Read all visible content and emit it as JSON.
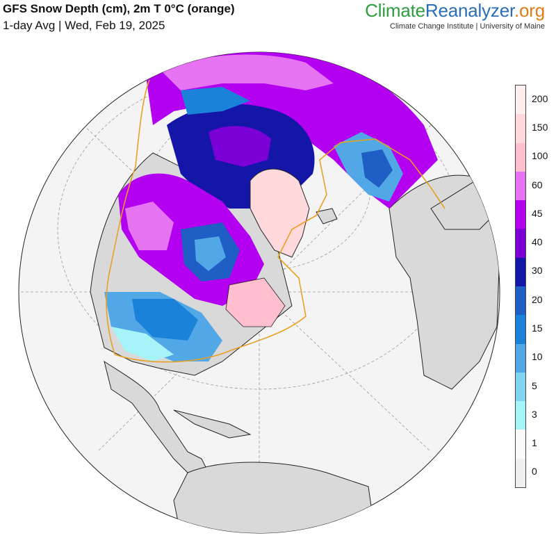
{
  "header": {
    "title": "GFS Snow Depth (cm), 2m T 0°C (orange)",
    "subtitle": "1-day Avg | Wed, Feb 19, 2025"
  },
  "brand": {
    "part1": "Climate",
    "part2": "Reanalyzer",
    "part3": ".org",
    "subtitle": "Climate Change Institute | University of Maine",
    "colors": {
      "climate": "#2e9d3f",
      "reanalyzer": "#2a6eb5",
      "org": "#e07b1a"
    }
  },
  "map": {
    "projection": "orthographic (northern hemisphere view)",
    "colors": {
      "ocean": "#f2f2f2",
      "land": "#d9d9d9",
      "freezing_line": "#e8a020"
    }
  },
  "legend": {
    "bins": [
      {
        "label": "0",
        "color": "#f0f0f0"
      },
      {
        "label": "1",
        "color": "#fafafa"
      },
      {
        "label": "3",
        "color": "#a6f4f7"
      },
      {
        "label": "5",
        "color": "#7fd4f2"
      },
      {
        "label": "10",
        "color": "#52a8e6"
      },
      {
        "label": "15",
        "color": "#1b82d9"
      },
      {
        "label": "20",
        "color": "#1f5ec4"
      },
      {
        "label": "30",
        "color": "#1416a8"
      },
      {
        "label": "40",
        "color": "#7a00d6"
      },
      {
        "label": "45",
        "color": "#b300f0"
      },
      {
        "label": "60",
        "color": "#e673f2"
      },
      {
        "label": "100",
        "color": "#ffbfcf"
      },
      {
        "label": "150",
        "color": "#ffd9dc"
      },
      {
        "label": "200",
        "color": "#fff0f0"
      }
    ]
  }
}
